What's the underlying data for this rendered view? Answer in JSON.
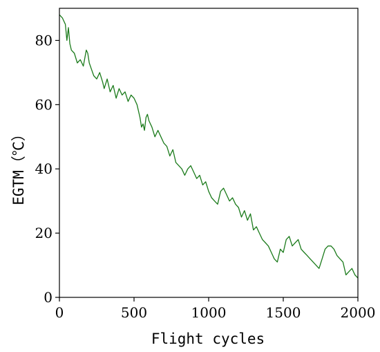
{
  "chart_data": {
    "type": "line",
    "title": "",
    "xlabel": "Flight cycles",
    "ylabel": "EGTM（℃）",
    "xlim": [
      0,
      2000
    ],
    "ylim": [
      0,
      90
    ],
    "xticks": [
      0,
      500,
      1000,
      1500,
      2000
    ],
    "yticks": [
      0,
      20,
      40,
      60,
      80
    ],
    "grid": false,
    "legend": "none",
    "series": [
      {
        "color": "#1a7a1a",
        "x": [
          0,
          20,
          40,
          50,
          60,
          70,
          80,
          100,
          120,
          140,
          160,
          180,
          190,
          200,
          215,
          230,
          250,
          270,
          290,
          300,
          320,
          340,
          360,
          380,
          400,
          420,
          440,
          460,
          480,
          500,
          520,
          540,
          550,
          560,
          570,
          580,
          590,
          600,
          620,
          640,
          660,
          680,
          700,
          720,
          740,
          760,
          780,
          800,
          820,
          840,
          860,
          880,
          900,
          920,
          940,
          960,
          980,
          1000,
          1020,
          1040,
          1060,
          1080,
          1100,
          1120,
          1140,
          1160,
          1180,
          1200,
          1220,
          1240,
          1260,
          1280,
          1300,
          1320,
          1340,
          1360,
          1380,
          1400,
          1420,
          1440,
          1460,
          1480,
          1500,
          1520,
          1540,
          1560,
          1580,
          1600,
          1620,
          1640,
          1660,
          1680,
          1700,
          1720,
          1740,
          1760,
          1780,
          1800,
          1820,
          1840,
          1860,
          1880,
          1900,
          1920,
          1940,
          1960,
          1980,
          2000
        ],
        "values": [
          88,
          87,
          85,
          80,
          84,
          79,
          77,
          76,
          73,
          74,
          72,
          77,
          76,
          73,
          71,
          69,
          68,
          70,
          67,
          65,
          68,
          64,
          66,
          62,
          65,
          63,
          64,
          61,
          63,
          62,
          60,
          56,
          53,
          54,
          52,
          56,
          57,
          55,
          53,
          50,
          52,
          50,
          48,
          47,
          44,
          46,
          42,
          41,
          40,
          38,
          40,
          41,
          39,
          37,
          38,
          35,
          36,
          33,
          31,
          30,
          29,
          33,
          34,
          32,
          30,
          31,
          29,
          28,
          25,
          27,
          24,
          26,
          21,
          22,
          20,
          18,
          17,
          16,
          14,
          12,
          11,
          15,
          14,
          18,
          19,
          16,
          17,
          18,
          15,
          14,
          13,
          12,
          11,
          10,
          9,
          12,
          15,
          16,
          16,
          15,
          13,
          12,
          11,
          7,
          8,
          9,
          7,
          6
        ]
      }
    ]
  }
}
